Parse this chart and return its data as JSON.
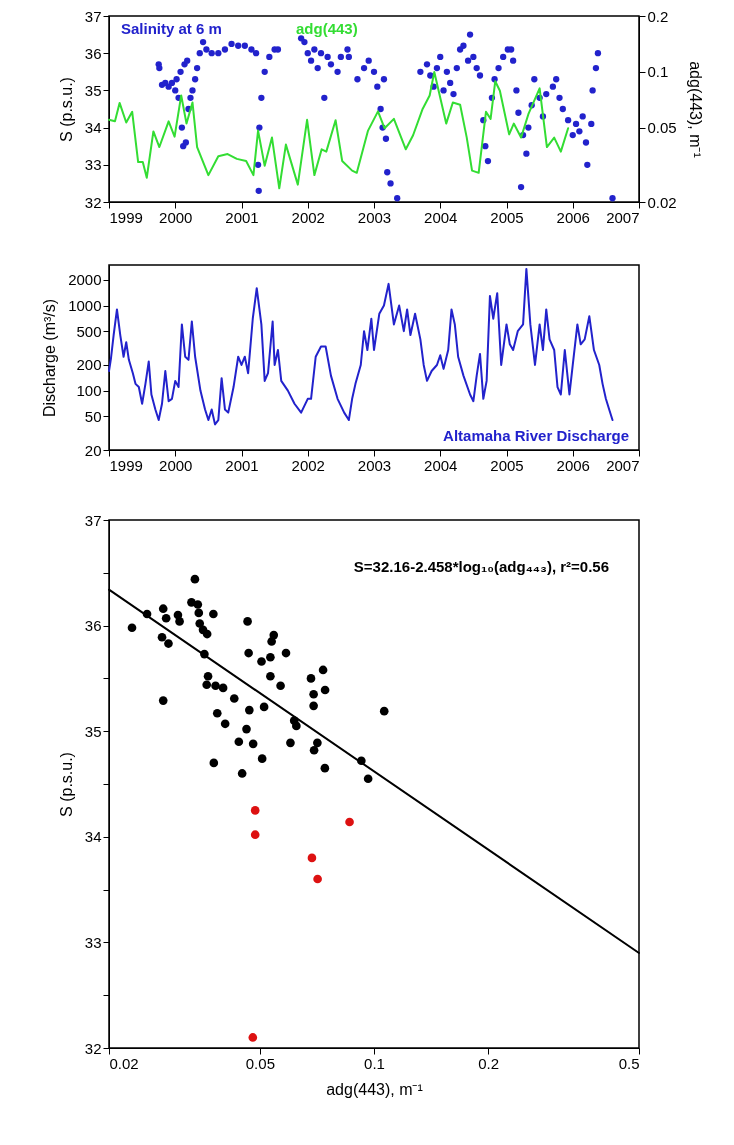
{
  "chart_data": [
    {
      "type": "scatter",
      "legend": "top left",
      "ylabel": "S (p.s.u.)",
      "y2label": "adg(443), m⁻¹",
      "log": "y2",
      "xlim": [
        1999,
        2007
      ],
      "xticks": [
        1999,
        2000,
        2001,
        2002,
        2003,
        2004,
        2005,
        2006,
        2007
      ],
      "ylim": [
        32,
        37
      ],
      "yticks": [
        32,
        33,
        34,
        35,
        36,
        37
      ],
      "y2lim": [
        0.02,
        0.2
      ],
      "y2ticks": [
        0.02,
        0.05,
        0.1,
        0.2
      ],
      "series": [
        {
          "name": "Salinity at 6 m",
          "marker": "circle",
          "color": "#2222cc",
          "x": [
            1999.75,
            1999.76,
            1999.8,
            1999.85,
            1999.9,
            1999.95,
            2000.0,
            2000.02,
            2000.05,
            2000.08,
            2000.1,
            2000.12,
            2000.14,
            2000.16,
            2000.18,
            2000.2,
            2000.23,
            2000.26,
            2000.3,
            2000.33,
            2000.37,
            2000.42,
            2000.47,
            2000.55,
            2000.65,
            2000.75,
            2000.85,
            2000.95,
            2001.05,
            2001.15,
            2001.22,
            2001.25,
            2001.26,
            2001.27,
            2001.3,
            2001.35,
            2001.42,
            2001.5,
            2001.55,
            2001.9,
            2001.95,
            2002.0,
            2002.05,
            2002.1,
            2002.15,
            2002.2,
            2002.25,
            2002.3,
            2002.35,
            2002.45,
            2002.5,
            2002.6,
            2002.62,
            2002.75,
            2002.85,
            2002.92,
            2003.0,
            2003.05,
            2003.1,
            2003.13,
            2003.15,
            2003.18,
            2003.2,
            2003.25,
            2003.35,
            2003.7,
            2003.8,
            2003.85,
            2003.9,
            2003.95,
            2004.0,
            2004.05,
            2004.1,
            2004.15,
            2004.2,
            2004.25,
            2004.3,
            2004.35,
            2004.42,
            2004.45,
            2004.5,
            2004.55,
            2004.6,
            2004.65,
            2004.68,
            2004.72,
            2004.78,
            2004.82,
            2004.88,
            2004.95,
            2005.02,
            2005.07,
            2005.1,
            2005.15,
            2005.18,
            2005.22,
            2005.25,
            2005.3,
            2005.33,
            2005.38,
            2005.42,
            2005.5,
            2005.55,
            2005.6,
            2005.7,
            2005.75,
            2005.8,
            2005.85,
            2005.93,
            2006.0,
            2006.05,
            2006.1,
            2006.15,
            2006.2,
            2006.22,
            2006.28,
            2006.3,
            2006.35,
            2006.38,
            2006.6
          ],
          "values": [
            35.7,
            35.6,
            35.15,
            35.2,
            35.1,
            35.2,
            35.0,
            35.3,
            34.8,
            35.5,
            34.0,
            33.5,
            35.7,
            33.6,
            35.8,
            34.5,
            34.8,
            35.0,
            35.3,
            35.6,
            36.0,
            36.3,
            36.1,
            36.0,
            36.0,
            36.1,
            36.25,
            36.2,
            36.2,
            36.1,
            36.0,
            33.0,
            32.3,
            34.0,
            34.8,
            35.5,
            35.9,
            36.1,
            36.1,
            36.4,
            36.3,
            36.0,
            35.8,
            36.1,
            35.6,
            36.0,
            34.8,
            35.9,
            35.7,
            35.5,
            35.9,
            36.1,
            35.9,
            35.3,
            35.6,
            35.8,
            35.5,
            35.1,
            34.5,
            34.0,
            35.3,
            33.7,
            32.8,
            32.5,
            32.1,
            35.5,
            35.7,
            35.4,
            35.1,
            35.6,
            35.9,
            35.0,
            35.5,
            35.2,
            34.9,
            35.6,
            36.1,
            36.2,
            35.8,
            36.5,
            35.9,
            35.6,
            35.4,
            34.2,
            33.5,
            33.1,
            34.8,
            35.3,
            35.6,
            35.9,
            36.1,
            36.1,
            35.8,
            35.0,
            34.4,
            32.4,
            33.8,
            33.3,
            34.0,
            34.6,
            35.3,
            34.8,
            34.3,
            34.9,
            35.1,
            35.3,
            34.8,
            34.5,
            34.2,
            33.8,
            34.1,
            33.9,
            34.3,
            33.6,
            33.0,
            34.1,
            35.0,
            35.6,
            36.0,
            32.1
          ]
        },
        {
          "name": "adg(443)",
          "type": "line",
          "axis": "y2",
          "color": "#33dd33",
          "x": [
            1999.0,
            1999.09,
            1999.16,
            1999.26,
            1999.35,
            1999.44,
            1999.51,
            1999.57,
            1999.67,
            1999.76,
            1999.9,
            1999.99,
            2000.09,
            2000.17,
            2000.26,
            2000.33,
            2000.5,
            2000.65,
            2000.79,
            2000.93,
            2001.07,
            2001.18,
            2001.25,
            2001.35,
            2001.46,
            2001.57,
            2001.67,
            2001.85,
            2001.99,
            2002.1,
            2002.21,
            2002.28,
            2002.42,
            2002.52,
            2002.67,
            2002.74,
            2002.91,
            2003.06,
            2003.16,
            2003.3,
            2003.48,
            2003.59,
            2003.73,
            2003.84,
            2003.91,
            2004.09,
            2004.19,
            2004.3,
            2004.4,
            2004.48,
            2004.58,
            2004.69,
            2004.76,
            2004.83,
            2004.9,
            2005.04,
            2005.11,
            2005.22,
            2005.33,
            2005.5,
            2005.61,
            2005.72,
            2005.82,
            2005.93
          ],
          "values": [
            0.0553,
            0.0543,
            0.0682,
            0.0535,
            0.0611,
            0.0328,
            0.0328,
            0.027,
            0.0479,
            0.0395,
            0.0543,
            0.0449,
            0.0748,
            0.0528,
            0.0686,
            0.0395,
            0.0279,
            0.0352,
            0.0362,
            0.0341,
            0.0332,
            0.0279,
            0.0484,
            0.0313,
            0.0444,
            0.0237,
            0.0407,
            0.0248,
            0.0553,
            0.0279,
            0.0384,
            0.0373,
            0.055,
            0.0332,
            0.0295,
            0.0287,
            0.0484,
            0.0614,
            0.0498,
            0.056,
            0.0384,
            0.0457,
            0.0628,
            0.0748,
            0.1,
            0.0528,
            0.0686,
            0.0667,
            0.0444,
            0.0295,
            0.0287,
            0.0611,
            0.056,
            0.0891,
            0.0793,
            0.0462,
            0.0528,
            0.0444,
            0.0593,
            0.0817,
            0.0395,
            0.0444,
            0.0373,
            0.0498
          ]
        }
      ]
    },
    {
      "type": "line",
      "legend": "bottom right",
      "ylabel": "Discharge (m³/s)",
      "log": "y",
      "xlim": [
        1999,
        2007
      ],
      "xticks": [
        1999,
        2000,
        2001,
        2002,
        2003,
        2004,
        2005,
        2006,
        2007
      ],
      "ylim": [
        20,
        3000
      ],
      "yticks": [
        20,
        50,
        100,
        200,
        500,
        1000,
        2000
      ],
      "series": [
        {
          "name": "Altamaha River Discharge",
          "color": "#2222cc",
          "x": [
            1999.0,
            1999.03,
            1999.07,
            1999.12,
            1999.17,
            1999.22,
            1999.26,
            1999.3,
            1999.36,
            1999.4,
            1999.45,
            1999.5,
            1999.55,
            1999.6,
            1999.64,
            1999.7,
            1999.75,
            1999.8,
            1999.85,
            1999.9,
            1999.95,
            2000.0,
            2000.05,
            2000.1,
            2000.15,
            2000.2,
            2000.25,
            2000.3,
            2000.38,
            2000.45,
            2000.5,
            2000.55,
            2000.6,
            2000.65,
            2000.7,
            2000.75,
            2000.8,
            2000.88,
            2000.95,
            2001.0,
            2001.05,
            2001.1,
            2001.17,
            2001.23,
            2001.3,
            2001.35,
            2001.4,
            2001.47,
            2001.5,
            2001.55,
            2001.6,
            2001.7,
            2001.8,
            2001.9,
            2002.0,
            2002.05,
            2002.12,
            2002.2,
            2002.27,
            2002.35,
            2002.45,
            2002.55,
            2002.62,
            2002.67,
            2002.72,
            2002.8,
            2002.85,
            2002.9,
            2002.96,
            2003.0,
            2003.08,
            2003.15,
            2003.22,
            2003.3,
            2003.38,
            2003.45,
            2003.5,
            2003.55,
            2003.62,
            2003.7,
            2003.75,
            2003.8,
            2003.87,
            2003.95,
            2004.0,
            2004.05,
            2004.12,
            2004.17,
            2004.22,
            2004.27,
            2004.35,
            2004.45,
            2004.5,
            2004.55,
            2004.6,
            2004.65,
            2004.7,
            2004.75,
            2004.8,
            2004.86,
            2004.92,
            2005.0,
            2005.05,
            2005.1,
            2005.17,
            2005.25,
            2005.3,
            2005.36,
            2005.43,
            2005.5,
            2005.55,
            2005.6,
            2005.65,
            2005.72,
            2005.77,
            2005.82,
            2005.88,
            2005.95,
            2006.0,
            2006.07,
            2006.12,
            2006.18,
            2006.25,
            2006.32,
            2006.4,
            2006.45,
            2006.5,
            2006.55,
            2006.6
          ],
          "values": [
            170,
            240,
            450,
            900,
            450,
            250,
            370,
            230,
            160,
            120,
            110,
            70,
            120,
            220,
            90,
            60,
            45,
            70,
            170,
            75,
            80,
            130,
            110,
            600,
            250,
            230,
            650,
            250,
            100,
            60,
            45,
            60,
            40,
            45,
            140,
            60,
            55,
            110,
            250,
            200,
            250,
            160,
            700,
            1600,
            600,
            130,
            160,
            650,
            200,
            300,
            130,
            100,
            70,
            55,
            80,
            80,
            250,
            330,
            330,
            150,
            80,
            55,
            45,
            80,
            120,
            200,
            500,
            300,
            700,
            300,
            800,
            1000,
            1800,
            600,
            1000,
            500,
            900,
            450,
            800,
            400,
            200,
            130,
            170,
            200,
            260,
            180,
            300,
            900,
            600,
            250,
            150,
            90,
            75,
            150,
            270,
            80,
            130,
            1300,
            700,
            1400,
            200,
            600,
            350,
            300,
            500,
            600,
            2700,
            600,
            200,
            600,
            300,
            900,
            400,
            300,
            110,
            90,
            300,
            90,
            200,
            600,
            350,
            400,
            750,
            300,
            200,
            120,
            80,
            60,
            45
          ]
        }
      ]
    },
    {
      "type": "scatter",
      "xlabel": "adg(443), m⁻¹",
      "ylabel": "S (p.s.u.)",
      "log": "x",
      "xlim": [
        0.02,
        0.5
      ],
      "xticks": [
        0.02,
        0.05,
        0.1,
        0.2,
        0.5
      ],
      "ylim": [
        32,
        37
      ],
      "yticks": [
        32,
        {
          "value": 32.5,
          "label": null
        },
        33,
        {
          "value": 33.5,
          "label": null
        },
        34,
        {
          "value": 34.5,
          "label": null
        },
        35,
        {
          "value": 35.5,
          "label": null
        },
        36,
        {
          "value": 36.5,
          "label": null
        },
        37
      ],
      "annotations": [
        "S=32.16-2.458*log₁₀(adg₄₄₃), r²=0.56"
      ],
      "series": [
        {
          "marker": "circle",
          "color": "#000000",
          "x": [
            0.023,
            0.0252,
            0.0278,
            0.0283,
            0.0276,
            0.0287,
            0.0304,
            0.0307,
            0.0278,
            0.0337,
            0.033,
            0.0343,
            0.0345,
            0.0347,
            0.0354,
            0.0363,
            0.0377,
            0.0357,
            0.0365,
            0.0362,
            0.0382,
            0.04,
            0.0428,
            0.0386,
            0.0405,
            0.0464,
            0.0467,
            0.0461,
            0.0469,
            0.044,
            0.048,
            0.0507,
            0.0505,
            0.0533,
            0.0537,
            0.0544,
            0.0533,
            0.0513,
            0.0567,
            0.0586,
            0.0602,
            0.0616,
            0.0624,
            0.0682,
            0.0693,
            0.0693,
            0.0734,
            0.0743,
            0.0709,
            0.0695,
            0.1064,
            0.0926,
            0.0378,
            0.0449,
            0.0742,
            0.0965
          ],
          "values": [
            35.98,
            36.11,
            36.16,
            36.07,
            35.89,
            35.83,
            36.1,
            36.04,
            35.29,
            36.44,
            36.22,
            36.2,
            36.12,
            36.02,
            35.96,
            35.92,
            36.11,
            35.73,
            35.52,
            35.44,
            35.43,
            35.41,
            35.31,
            35.17,
            35.07,
            36.04,
            35.74,
            35.02,
            35.2,
            34.9,
            34.88,
            34.74,
            35.66,
            35.7,
            35.85,
            35.91,
            35.52,
            35.23,
            35.43,
            35.74,
            34.89,
            35.1,
            35.05,
            35.5,
            35.35,
            35.24,
            35.58,
            35.39,
            34.89,
            34.82,
            35.19,
            34.72,
            34.7,
            34.6,
            34.65,
            34.55
          ]
        },
        {
          "marker": "circle",
          "color": "#dd1111",
          "x": [
            0.0486,
            0.0486,
            0.0862,
            0.0686,
            0.071,
            0.0479
          ],
          "values": [
            34.25,
            34.02,
            34.14,
            33.8,
            33.6,
            32.1
          ]
        },
        {
          "type": "line",
          "color": "#000000",
          "x": [
            0.02,
            0.5
          ],
          "values": [
            36.34,
            32.9
          ]
        }
      ]
    }
  ]
}
